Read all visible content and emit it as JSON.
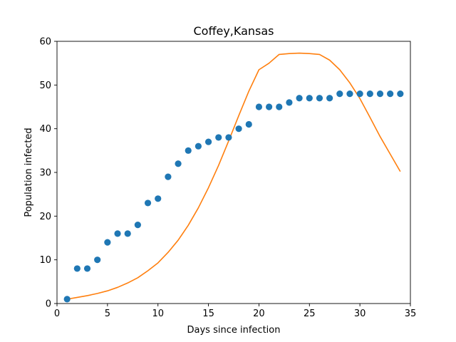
{
  "chart_data": {
    "type": "scatter",
    "title": "Coffey,Kansas",
    "xlabel": "Days since infection",
    "ylabel": "Population infected",
    "xlim": [
      0.0,
      35.0
    ],
    "ylim": [
      0,
      60
    ],
    "xticks": [
      0,
      5,
      10,
      15,
      20,
      25,
      30,
      35
    ],
    "yticks": [
      0,
      10,
      20,
      30,
      40,
      50,
      60
    ],
    "grid": false,
    "legend": "none",
    "series": [
      {
        "kind": "scatter",
        "color": "#1f77b4",
        "x": [
          1,
          2,
          3,
          4,
          5,
          6,
          7,
          8,
          9,
          10,
          11,
          12,
          13,
          14,
          15,
          16,
          17,
          18,
          19,
          20,
          21,
          22,
          23,
          24,
          25,
          26,
          27,
          28,
          29,
          30,
          31,
          32,
          33,
          34
        ],
        "y": [
          1,
          8,
          8,
          10,
          14,
          16,
          16,
          18,
          23,
          24,
          29,
          32,
          35,
          36,
          37,
          38,
          38,
          40,
          41,
          45,
          45,
          45,
          46,
          47,
          47,
          47,
          47,
          48,
          48,
          48,
          48,
          48,
          48,
          48
        ]
      },
      {
        "kind": "line",
        "color": "#ff7f0e",
        "x": [
          1,
          2,
          3,
          4,
          5,
          6,
          7,
          8,
          9,
          10,
          11,
          12,
          13,
          14,
          15,
          16,
          17,
          18,
          19,
          20,
          21,
          22,
          23,
          24,
          25,
          26,
          27,
          28,
          29,
          30,
          31,
          32,
          33,
          34
        ],
        "y": [
          1.0,
          1.4,
          1.8,
          2.3,
          2.9,
          3.7,
          4.7,
          5.9,
          7.5,
          9.3,
          11.7,
          14.5,
          17.9,
          21.9,
          26.5,
          31.6,
          37.2,
          43.0,
          48.6,
          53.5,
          55.0,
          57.0,
          57.2,
          57.3,
          57.2,
          57.0,
          55.7,
          53.5,
          50.5,
          46.9,
          42.6,
          38.2,
          34.2,
          30.2
        ]
      }
    ]
  }
}
